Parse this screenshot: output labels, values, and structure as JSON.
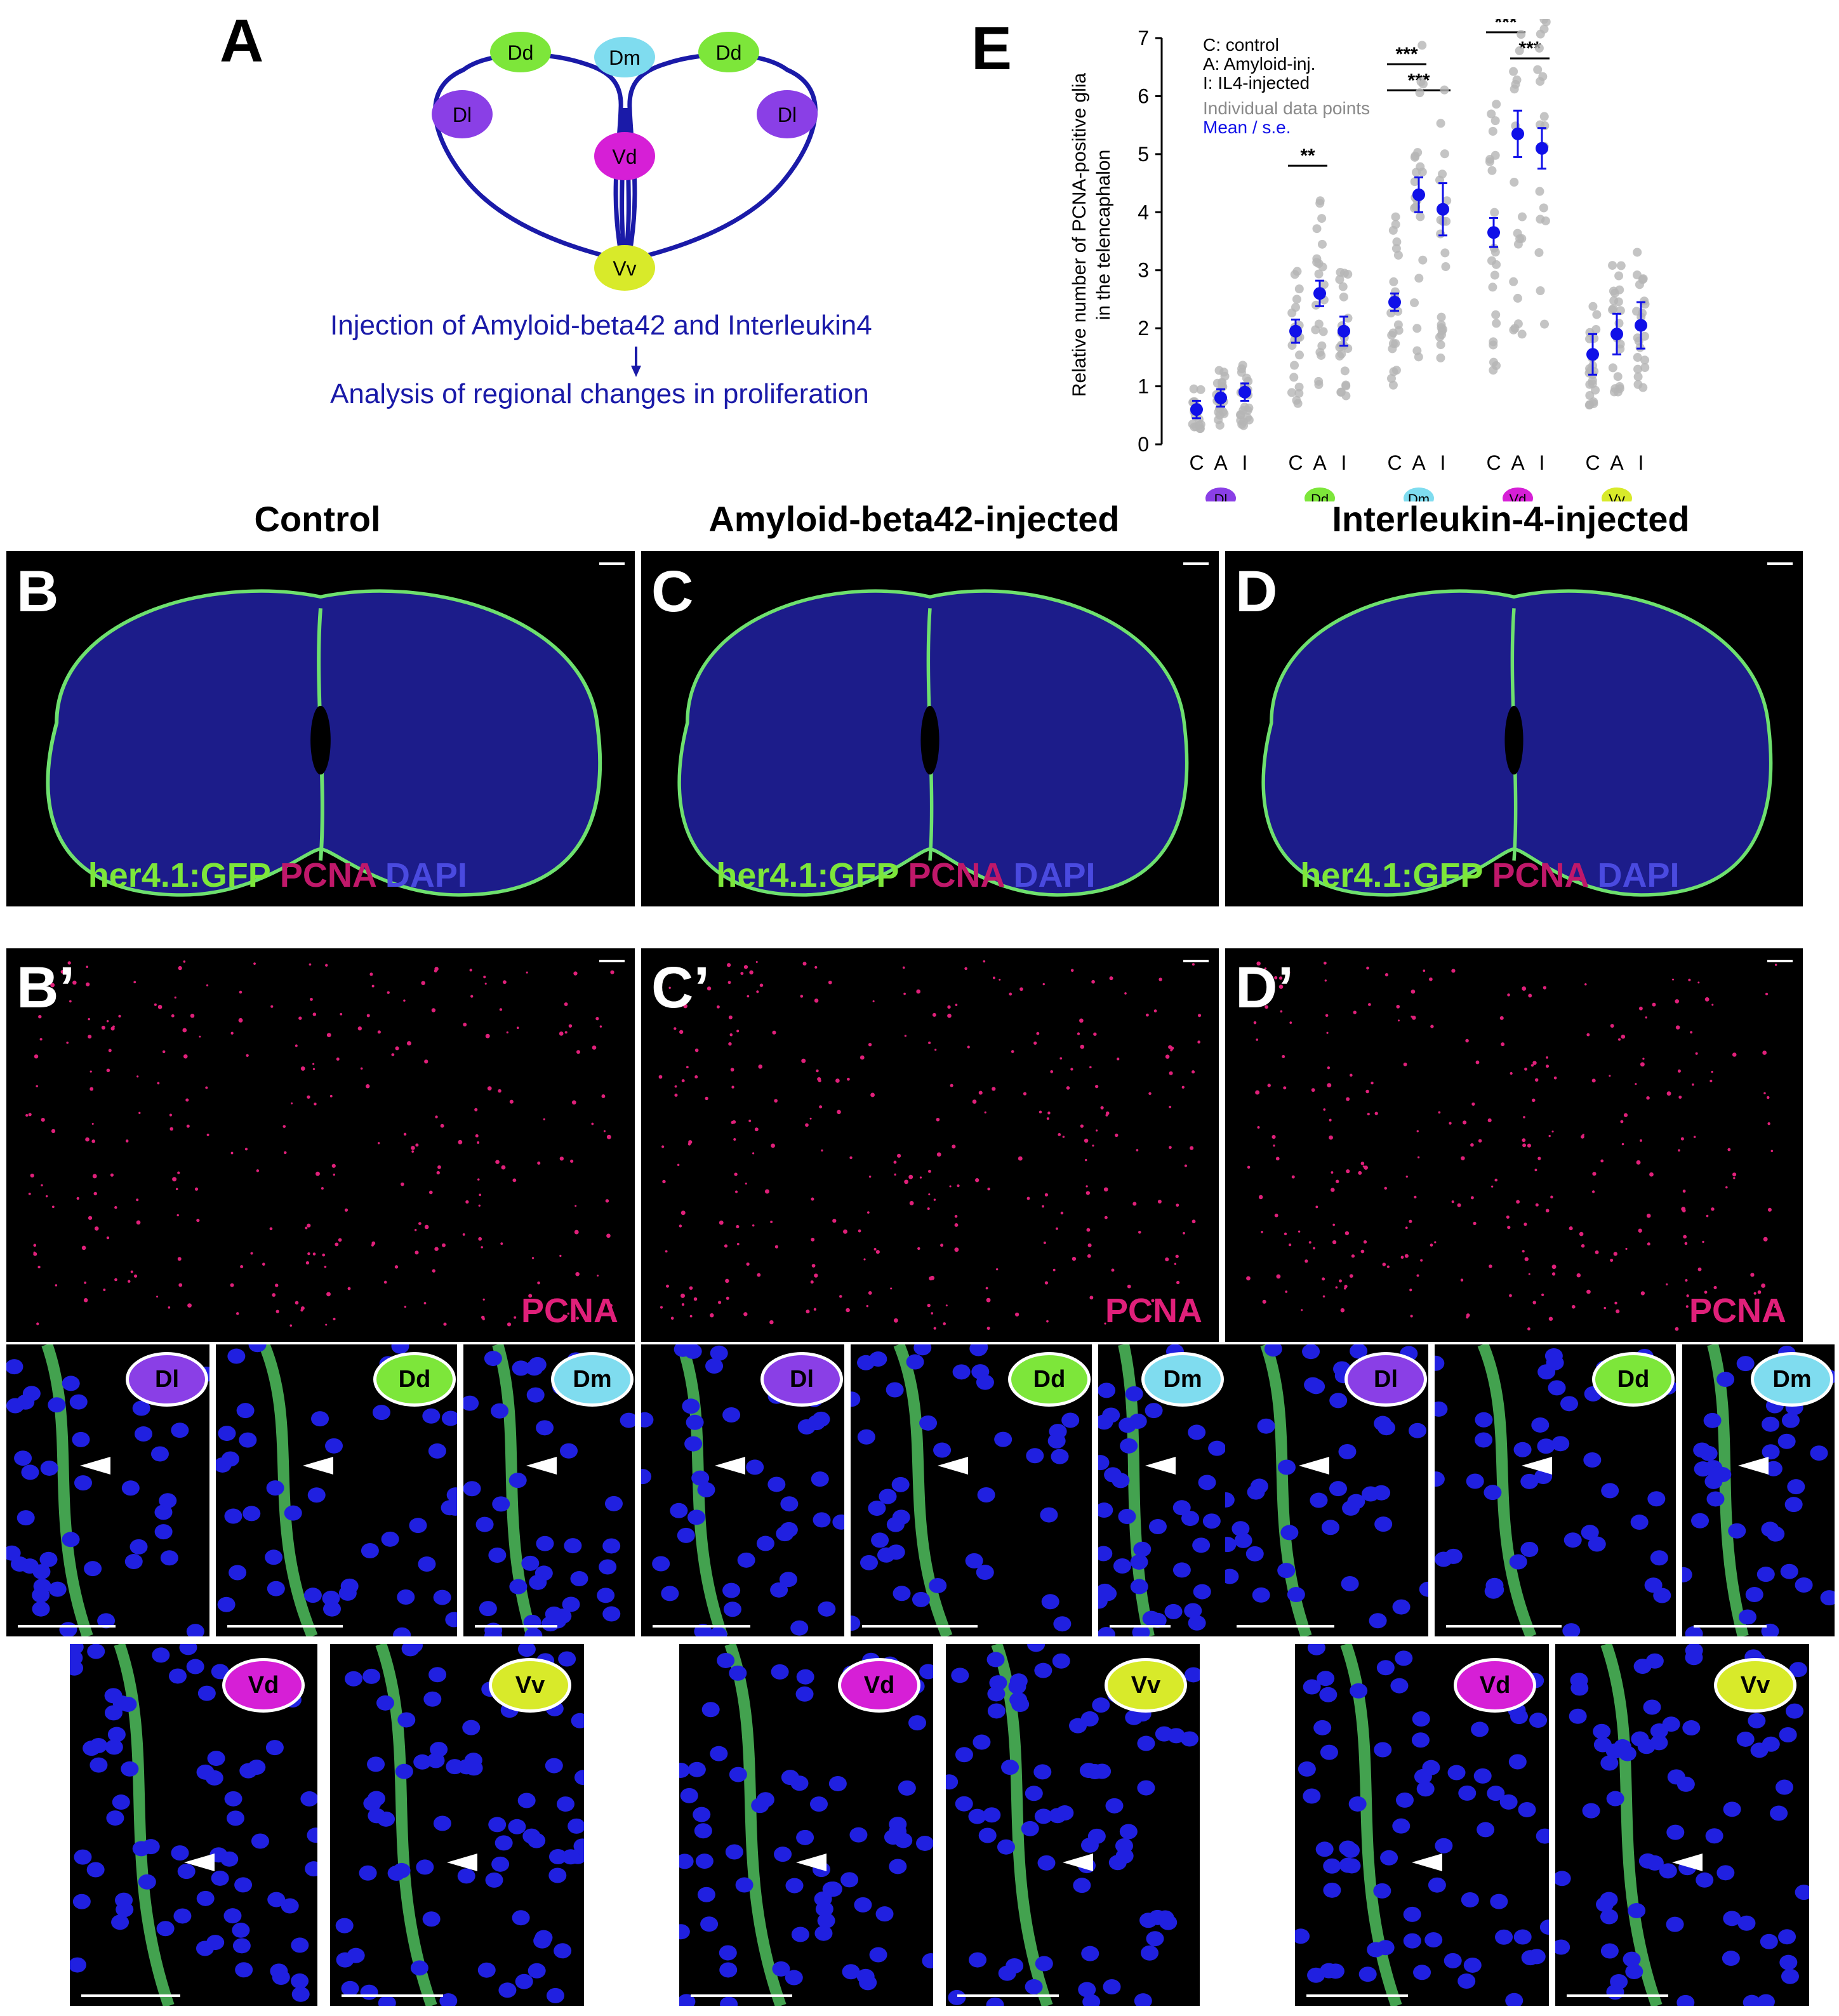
{
  "panel_letters": {
    "A": "A",
    "E": "E",
    "B": "B",
    "C": "C",
    "D": "D",
    "Bp": "B’",
    "Cp": "C’",
    "Dp": "D’"
  },
  "schematic": {
    "regions": [
      "Dd",
      "Dm",
      "Dd",
      "Dl",
      "Dl",
      "Vd",
      "Vv"
    ],
    "line1": "Injection of Amyloid-beta42 and Interleukin4",
    "line2": "Analysis of regional changes in proliferation"
  },
  "column_titles": [
    "Control",
    "Amyloid-beta42-injected",
    "Interleukin-4-injected"
  ],
  "stain_labels": {
    "green": "her4.1:GFP",
    "red": "PCNA",
    "blue": "DAPI",
    "pcna": "PCNA"
  },
  "region_names": {
    "Dl": "Dl",
    "Dd": "Dd",
    "Dm": "Dm",
    "Vd": "Vd",
    "Vv": "Vv"
  },
  "colors": {
    "Dl": "#8a3fe6",
    "Dd": "#7de63a",
    "Dm": "#7fdcef",
    "Vd": "#d61fd6",
    "Vv": "#d8ea2a",
    "schematic_line": "#1a1aa8",
    "text_blue": "#1a1aa8",
    "mean": "#1010e8",
    "points": "#b5b5b5"
  },
  "chart_data": {
    "type": "scatter",
    "ylabel_line1": "Relative number of PCNA-positive glia",
    "ylabel_line2": "in the telencaphalon",
    "ylim": [
      0,
      7
    ],
    "yticks": [
      "0",
      "1",
      "2",
      "3",
      "4",
      "5",
      "6",
      "7"
    ],
    "legend": [
      "C: control",
      "A: Amyloid-inj.",
      "I: IL4-injected"
    ],
    "legend_points": "Individual data points",
    "legend_mean": "Mean / s.e.",
    "groups": [
      {
        "region": "Dl",
        "conditions": [
          "C",
          "A",
          "I"
        ],
        "means": [
          0.6,
          0.8,
          0.9
        ],
        "se": [
          0.15,
          0.15,
          0.15
        ]
      },
      {
        "region": "Dd",
        "conditions": [
          "C",
          "A",
          "I"
        ],
        "means": [
          1.95,
          2.6,
          1.95
        ],
        "se": [
          0.2,
          0.22,
          0.25
        ]
      },
      {
        "region": "Dm",
        "conditions": [
          "C",
          "A",
          "I"
        ],
        "means": [
          2.45,
          4.3,
          4.05
        ],
        "se": [
          0.15,
          0.3,
          0.45
        ]
      },
      {
        "region": "Vd",
        "conditions": [
          "C",
          "A",
          "I"
        ],
        "means": [
          3.65,
          5.35,
          5.1
        ],
        "se": [
          0.25,
          0.4,
          0.35
        ]
      },
      {
        "region": "Vv",
        "conditions": [
          "C",
          "A",
          "I"
        ],
        "means": [
          1.55,
          1.9,
          2.05
        ],
        "se": [
          0.35,
          0.35,
          0.4
        ]
      }
    ],
    "significance": [
      "**",
      "***",
      "***",
      "***",
      "***"
    ]
  }
}
